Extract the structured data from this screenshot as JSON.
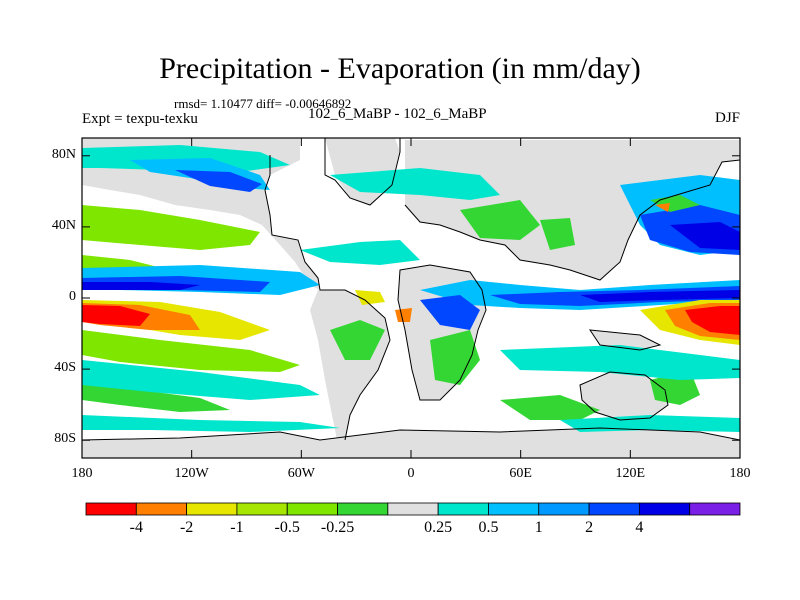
{
  "title": "Precipitation - Evaporation (in mm/day)",
  "stats": "rmsd= 1.10477 diff= -0.00646892",
  "expt": "Expt = texpu-texku",
  "case": "102_6_MaBP - 102_6_MaBP",
  "season": "DJF",
  "lat_ticks": [
    {
      "label": "80N",
      "value": 80
    },
    {
      "label": "40N",
      "value": 40
    },
    {
      "label": "0",
      "value": 0
    },
    {
      "label": "40S",
      "value": -40
    },
    {
      "label": "80S",
      "value": -80
    }
  ],
  "lon_ticks": [
    {
      "label": "180",
      "value": -180
    },
    {
      "label": "120W",
      "value": -120
    },
    {
      "label": "60W",
      "value": -60
    },
    {
      "label": "0",
      "value": 0
    },
    {
      "label": "60E",
      "value": 60
    },
    {
      "label": "120E",
      "value": 120
    },
    {
      "label": "180",
      "value": 180
    }
  ],
  "colorbar": {
    "colors": [
      "#ff0000",
      "#ff7f00",
      "#e6e600",
      "#a6e600",
      "#7fe600",
      "#33d633",
      "#e0e0e0",
      "#00e6cc",
      "#00bfff",
      "#0099ff",
      "#0047ff",
      "#0000e6",
      "#7a1fe6"
    ],
    "labels": [
      "-4",
      "-2",
      "-1",
      "-0.5",
      "-0.25",
      "0.25",
      "0.5",
      "1",
      "2",
      "4"
    ]
  },
  "colors": {
    "land_gray": "#e0e0e0",
    "red": "#ff0000",
    "orange": "#ff7f00",
    "yellow": "#e6e600",
    "lime": "#a6e600",
    "green": "#33d633",
    "cyan": "#00e6cc",
    "sky": "#00bfff",
    "azure": "#0099ff",
    "blue": "#0047ff",
    "navy": "#0000e6"
  }
}
